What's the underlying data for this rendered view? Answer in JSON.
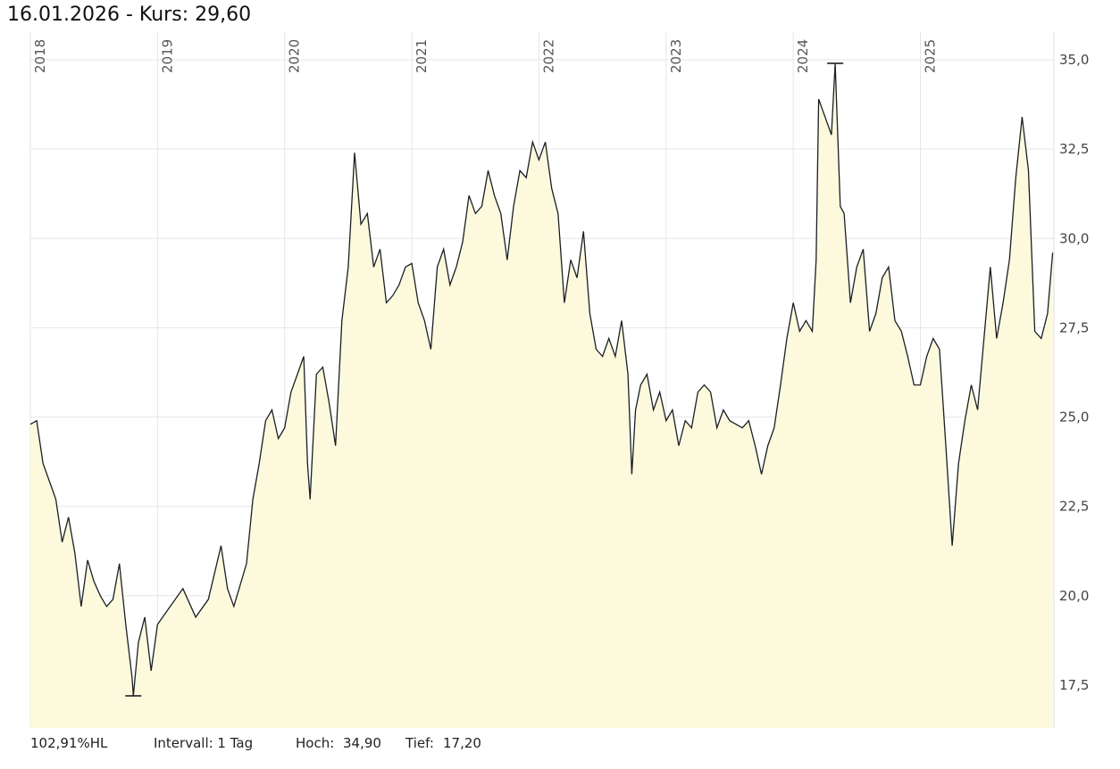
{
  "header": {
    "date": "16.01.2026",
    "sep": " - ",
    "price_label": "Kurs:",
    "price": "29,60"
  },
  "footer": {
    "range_pct": "102,91%HL",
    "interval": "Intervall: 1 Tag",
    "high_label": "Hoch:",
    "high": "34,90",
    "low_label": "Tief:",
    "low": "17,20"
  },
  "colors": {
    "line": "#1a1f24",
    "fill": "#fdf9dc",
    "grid": "#e6e6e6"
  },
  "chart_data": {
    "type": "area",
    "title": "16.01.2026 - Kurs: 29,60",
    "xlabel": "",
    "ylabel": "",
    "xlim": [
      2018.0,
      2026.05
    ],
    "ylim": [
      16.3,
      35.8
    ],
    "grid": true,
    "x_ticks": [
      2018,
      2019,
      2020,
      2021,
      2022,
      2023,
      2024,
      2025
    ],
    "x_tick_labels": [
      "2018",
      "2019",
      "2020",
      "2021",
      "2022",
      "2023",
      "2024",
      "2025"
    ],
    "y_ticks": [
      17.5,
      20.0,
      22.5,
      25.0,
      27.5,
      30.0,
      32.5,
      35.0
    ],
    "y_tick_labels": [
      "17,5",
      "20,0",
      "22,5",
      "25,0",
      "27,5",
      "30,0",
      "32,5",
      "35,0"
    ],
    "high_marker": {
      "x": 2024.33,
      "y": 34.9
    },
    "low_marker": {
      "x": 2018.81,
      "y": 17.2
    },
    "points": [
      [
        2018.0,
        24.8
      ],
      [
        2018.05,
        24.9
      ],
      [
        2018.1,
        23.7
      ],
      [
        2018.15,
        23.2
      ],
      [
        2018.2,
        22.7
      ],
      [
        2018.25,
        21.5
      ],
      [
        2018.3,
        22.2
      ],
      [
        2018.35,
        21.2
      ],
      [
        2018.4,
        19.7
      ],
      [
        2018.45,
        21.0
      ],
      [
        2018.5,
        20.4
      ],
      [
        2018.55,
        20.0
      ],
      [
        2018.6,
        19.7
      ],
      [
        2018.65,
        19.9
      ],
      [
        2018.7,
        20.9
      ],
      [
        2018.75,
        19.2
      ],
      [
        2018.8,
        17.7
      ],
      [
        2018.81,
        17.2
      ],
      [
        2018.85,
        18.7
      ],
      [
        2018.9,
        19.4
      ],
      [
        2018.95,
        17.9
      ],
      [
        2019.0,
        19.2
      ],
      [
        2019.1,
        19.7
      ],
      [
        2019.2,
        20.2
      ],
      [
        2019.3,
        19.4
      ],
      [
        2019.4,
        19.9
      ],
      [
        2019.5,
        21.4
      ],
      [
        2019.55,
        20.2
      ],
      [
        2019.6,
        19.7
      ],
      [
        2019.7,
        20.9
      ],
      [
        2019.75,
        22.7
      ],
      [
        2019.8,
        23.7
      ],
      [
        2019.85,
        24.9
      ],
      [
        2019.9,
        25.2
      ],
      [
        2019.95,
        24.4
      ],
      [
        2020.0,
        24.7
      ],
      [
        2020.05,
        25.7
      ],
      [
        2020.1,
        26.2
      ],
      [
        2020.15,
        26.7
      ],
      [
        2020.18,
        23.7
      ],
      [
        2020.2,
        22.7
      ],
      [
        2020.25,
        26.2
      ],
      [
        2020.3,
        26.4
      ],
      [
        2020.35,
        25.4
      ],
      [
        2020.4,
        24.2
      ],
      [
        2020.45,
        27.7
      ],
      [
        2020.5,
        29.2
      ],
      [
        2020.55,
        32.4
      ],
      [
        2020.6,
        30.4
      ],
      [
        2020.65,
        30.7
      ],
      [
        2020.7,
        29.2
      ],
      [
        2020.75,
        29.7
      ],
      [
        2020.8,
        28.2
      ],
      [
        2020.85,
        28.4
      ],
      [
        2020.9,
        28.7
      ],
      [
        2020.95,
        29.2
      ],
      [
        2021.0,
        29.3
      ],
      [
        2021.05,
        28.2
      ],
      [
        2021.1,
        27.7
      ],
      [
        2021.15,
        26.9
      ],
      [
        2021.2,
        29.2
      ],
      [
        2021.25,
        29.7
      ],
      [
        2021.3,
        28.7
      ],
      [
        2021.35,
        29.2
      ],
      [
        2021.4,
        29.9
      ],
      [
        2021.45,
        31.2
      ],
      [
        2021.5,
        30.7
      ],
      [
        2021.55,
        30.9
      ],
      [
        2021.6,
        31.9
      ],
      [
        2021.65,
        31.2
      ],
      [
        2021.7,
        30.7
      ],
      [
        2021.75,
        29.4
      ],
      [
        2021.8,
        30.9
      ],
      [
        2021.85,
        31.9
      ],
      [
        2021.9,
        31.7
      ],
      [
        2021.95,
        32.7
      ],
      [
        2022.0,
        32.2
      ],
      [
        2022.05,
        32.7
      ],
      [
        2022.1,
        31.4
      ],
      [
        2022.15,
        30.7
      ],
      [
        2022.2,
        28.2
      ],
      [
        2022.25,
        29.4
      ],
      [
        2022.3,
        28.9
      ],
      [
        2022.35,
        30.2
      ],
      [
        2022.4,
        27.9
      ],
      [
        2022.45,
        26.9
      ],
      [
        2022.5,
        26.7
      ],
      [
        2022.55,
        27.2
      ],
      [
        2022.6,
        26.7
      ],
      [
        2022.65,
        27.7
      ],
      [
        2022.7,
        26.2
      ],
      [
        2022.73,
        23.4
      ],
      [
        2022.76,
        25.2
      ],
      [
        2022.8,
        25.9
      ],
      [
        2022.85,
        26.2
      ],
      [
        2022.9,
        25.2
      ],
      [
        2022.95,
        25.7
      ],
      [
        2023.0,
        24.9
      ],
      [
        2023.05,
        25.2
      ],
      [
        2023.1,
        24.2
      ],
      [
        2023.15,
        24.9
      ],
      [
        2023.2,
        24.7
      ],
      [
        2023.25,
        25.7
      ],
      [
        2023.3,
        25.9
      ],
      [
        2023.35,
        25.7
      ],
      [
        2023.4,
        24.7
      ],
      [
        2023.45,
        25.2
      ],
      [
        2023.5,
        24.9
      ],
      [
        2023.55,
        24.8
      ],
      [
        2023.6,
        24.7
      ],
      [
        2023.65,
        24.9
      ],
      [
        2023.7,
        24.2
      ],
      [
        2023.75,
        23.4
      ],
      [
        2023.8,
        24.2
      ],
      [
        2023.85,
        24.7
      ],
      [
        2023.9,
        25.9
      ],
      [
        2023.95,
        27.2
      ],
      [
        2024.0,
        28.2
      ],
      [
        2024.05,
        27.4
      ],
      [
        2024.1,
        27.7
      ],
      [
        2024.15,
        27.4
      ],
      [
        2024.18,
        29.4
      ],
      [
        2024.2,
        33.9
      ],
      [
        2024.25,
        33.4
      ],
      [
        2024.3,
        32.9
      ],
      [
        2024.33,
        34.9
      ],
      [
        2024.37,
        30.9
      ],
      [
        2024.4,
        30.7
      ],
      [
        2024.45,
        28.2
      ],
      [
        2024.5,
        29.2
      ],
      [
        2024.55,
        29.7
      ],
      [
        2024.6,
        27.4
      ],
      [
        2024.65,
        27.9
      ],
      [
        2024.7,
        28.9
      ],
      [
        2024.75,
        29.2
      ],
      [
        2024.8,
        27.7
      ],
      [
        2024.85,
        27.4
      ],
      [
        2024.9,
        26.7
      ],
      [
        2024.95,
        25.9
      ],
      [
        2025.0,
        25.9
      ],
      [
        2025.05,
        26.7
      ],
      [
        2025.1,
        27.2
      ],
      [
        2025.15,
        26.9
      ],
      [
        2025.2,
        24.2
      ],
      [
        2025.25,
        21.4
      ],
      [
        2025.3,
        23.7
      ],
      [
        2025.35,
        24.9
      ],
      [
        2025.4,
        25.9
      ],
      [
        2025.45,
        25.2
      ],
      [
        2025.5,
        27.2
      ],
      [
        2025.55,
        29.2
      ],
      [
        2025.6,
        27.2
      ],
      [
        2025.65,
        28.2
      ],
      [
        2025.7,
        29.4
      ],
      [
        2025.75,
        31.7
      ],
      [
        2025.8,
        33.4
      ],
      [
        2025.85,
        31.9
      ],
      [
        2025.9,
        27.4
      ],
      [
        2025.95,
        27.2
      ],
      [
        2026.0,
        27.9
      ],
      [
        2026.04,
        29.6
      ]
    ]
  }
}
